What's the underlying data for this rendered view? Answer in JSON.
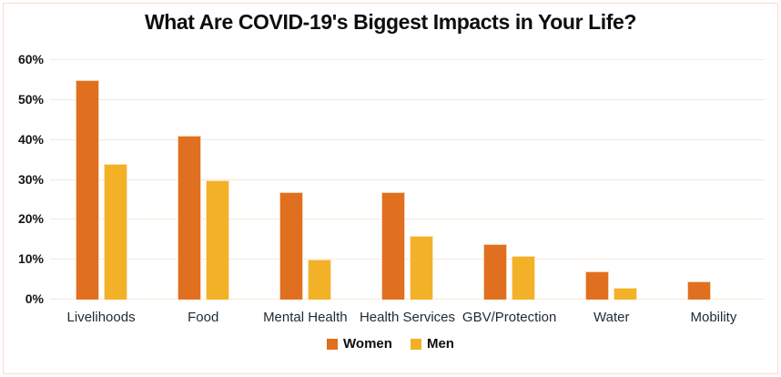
{
  "frame": {
    "border_color": "#f8ddd0"
  },
  "chart_data": {
    "type": "bar",
    "title": "What Are COVID-19's Biggest Impacts in Your Life?",
    "categories": [
      "Livelihoods",
      "Food",
      "Mental Health",
      "Health Services",
      "GBV/Protection",
      "Water",
      "Mobility"
    ],
    "series": [
      {
        "name": "Women",
        "color": "#E06F20",
        "values": [
          55,
          41,
          27,
          27,
          14,
          7,
          4.5
        ]
      },
      {
        "name": "Men",
        "color": "#F2B127",
        "values": [
          34,
          30,
          10,
          16,
          11,
          3,
          0
        ]
      }
    ],
    "y_axis": {
      "min": 0,
      "max": 60,
      "step": 10,
      "tick_labels": [
        "0%",
        "10%",
        "20%",
        "30%",
        "40%",
        "50%",
        "60%"
      ],
      "unit": "%"
    },
    "grid": "horizontal",
    "gridline_color": "#fae7d8",
    "legend_position": "bottom",
    "legend_labels": [
      "Women",
      "Men"
    ]
  }
}
